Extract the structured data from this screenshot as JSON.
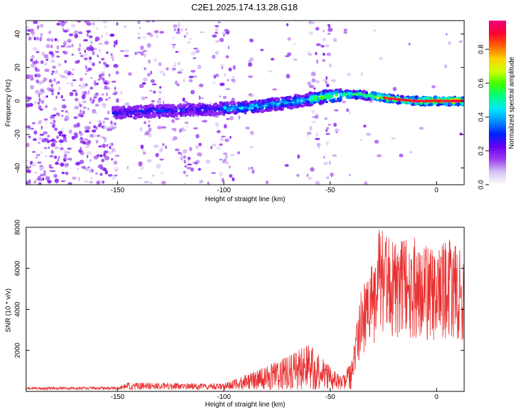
{
  "figure": {
    "title": "C2E1.2025.174.13.28.G18"
  },
  "chart_data": [
    {
      "type": "heatmap",
      "xlabel": "Height of straight line (km)",
      "ylabel": "Frequency (Hz)",
      "xlim": [
        -193,
        13
      ],
      "ylim": [
        -50,
        48
      ],
      "x_ticks": [
        -150,
        -100,
        -50,
        0
      ],
      "y_ticks": [
        -40,
        -20,
        0,
        20,
        40
      ],
      "colorbar": {
        "label": "Normalized spectral amplitude",
        "range": [
          0,
          0.97
        ],
        "ticks": [
          0.0,
          0.2,
          0.4,
          0.6,
          0.8
        ],
        "colors": [
          "#ffffff",
          "#d8c4f4",
          "#9c40f0",
          "#6a00f0",
          "#0020ff",
          "#0090ff",
          "#00e8ff",
          "#00ff80",
          "#40ff00",
          "#d0ff00",
          "#ffd000",
          "#ff6000",
          "#ff0030",
          "#f0007a"
        ]
      },
      "ridge": [
        [
          -150,
          -7
        ],
        [
          -130,
          -6
        ],
        [
          -110,
          -5
        ],
        [
          -90,
          -4
        ],
        [
          -70,
          -1
        ],
        [
          -50,
          3
        ],
        [
          -40,
          4
        ],
        [
          -30,
          3
        ],
        [
          -20,
          1
        ],
        [
          -10,
          0
        ],
        [
          0,
          0
        ],
        [
          13,
          0
        ]
      ],
      "noise_bands_x": [
        [
          -193,
          -150
        ],
        [
          -140,
          -128
        ],
        [
          -124,
          -110
        ],
        [
          -105,
          -95
        ],
        [
          -89,
          -86
        ],
        [
          -60,
          -47
        ]
      ]
    },
    {
      "type": "line",
      "xlabel": "Height of straight line (km)",
      "ylabel": "SNR (10 * v/v)",
      "xlim": [
        -193,
        13
      ],
      "ylim": [
        0,
        8000
      ],
      "x_ticks": [
        -150,
        -100,
        -50,
        0
      ],
      "y_ticks": [
        2000,
        4000,
        6000,
        8000
      ],
      "color": "#e83030",
      "envelope": {
        "x": [
          -193,
          -150,
          -145,
          -100,
          -80,
          -70,
          -60,
          -50,
          -45,
          -40,
          -35,
          -30,
          -27,
          -20,
          -10,
          0,
          5,
          13
        ],
        "y": [
          200,
          220,
          420,
          380,
          1200,
          1700,
          2300,
          1200,
          700,
          1400,
          5200,
          6200,
          8000,
          7200,
          7500,
          6700,
          7500,
          6700
        ]
      }
    }
  ]
}
